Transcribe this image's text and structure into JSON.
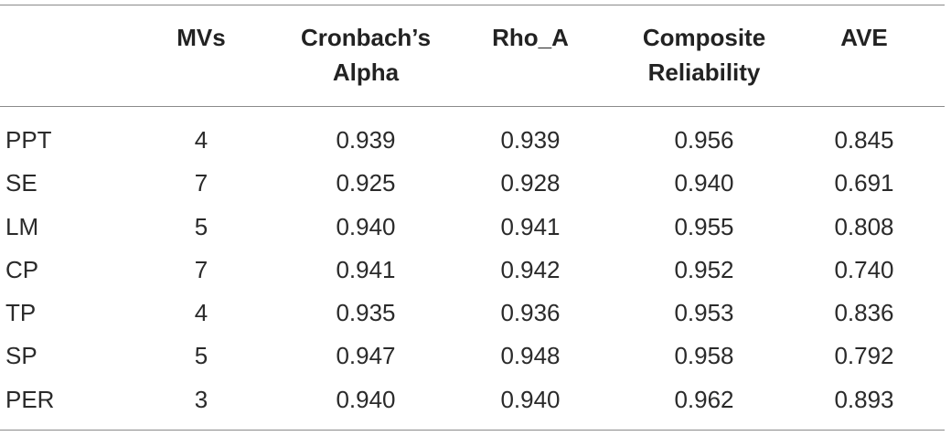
{
  "table": {
    "headers": [
      {
        "line1": "",
        "line2": ""
      },
      {
        "line1": "MVs",
        "line2": ""
      },
      {
        "line1": "Cronbach’s",
        "line2": "Alpha"
      },
      {
        "line1": "Rho_A",
        "line2": ""
      },
      {
        "line1": "Composite",
        "line2": "Reliability"
      },
      {
        "line1": "AVE",
        "line2": ""
      }
    ],
    "rows": [
      [
        "PPT",
        "4",
        "0.939",
        "0.939",
        "0.956",
        "0.845"
      ],
      [
        "SE",
        "7",
        "0.925",
        "0.928",
        "0.940",
        "0.691"
      ],
      [
        "LM",
        "5",
        "0.940",
        "0.941",
        "0.955",
        "0.808"
      ],
      [
        "CP",
        "7",
        "0.941",
        "0.942",
        "0.952",
        "0.740"
      ],
      [
        "TP",
        "4",
        "0.935",
        "0.936",
        "0.953",
        "0.836"
      ],
      [
        "SP",
        "5",
        "0.947",
        "0.948",
        "0.958",
        "0.792"
      ],
      [
        "PER",
        "3",
        "0.940",
        "0.940",
        "0.962",
        "0.893"
      ]
    ]
  }
}
